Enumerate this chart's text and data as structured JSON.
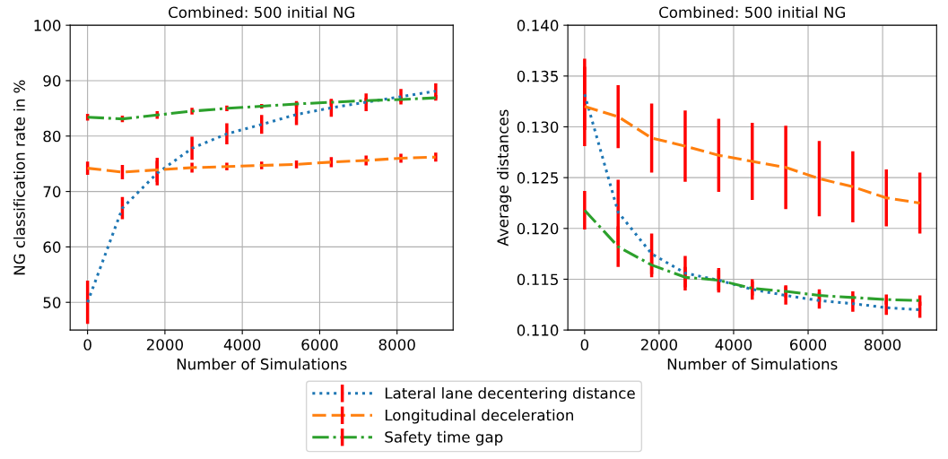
{
  "chart_data": [
    {
      "type": "line",
      "title": "Combined: 500 initial NG",
      "xlabel": "Number of Simulations",
      "ylabel": "NG classification rate in %",
      "x": [
        0,
        900,
        1800,
        2700,
        3600,
        4500,
        5400,
        6300,
        7200,
        8100,
        9000
      ],
      "xlim": [
        -450,
        9450
      ],
      "xticks": [
        0,
        2000,
        4000,
        6000,
        8000
      ],
      "ylim": [
        45,
        100
      ],
      "yticks": [
        50,
        60,
        70,
        80,
        90,
        100
      ],
      "grid": true,
      "legend": "bottom",
      "marker": "none",
      "series": [
        {
          "name": "Lateral lane decentering distance",
          "color": "#1f77b4",
          "line_style": "dotted",
          "values": [
            50.0,
            67.0,
            73.3,
            77.8,
            80.4,
            82.1,
            83.9,
            85.1,
            86.1,
            87.1,
            88.1
          ],
          "errors": [
            3.9,
            2.0,
            2.2,
            2.1,
            1.9,
            1.7,
            1.9,
            1.6,
            1.6,
            1.4,
            1.4
          ]
        },
        {
          "name": "Longitudinal deceleration",
          "color": "#ff7f0e",
          "line_style": "dashed",
          "values": [
            74.2,
            73.5,
            73.9,
            74.3,
            74.5,
            74.7,
            74.9,
            75.3,
            75.6,
            76.0,
            76.2
          ],
          "errors": [
            1.2,
            1.3,
            2.2,
            0.9,
            0.7,
            0.7,
            0.7,
            0.9,
            0.9,
            0.8,
            0.8
          ]
        },
        {
          "name": "Safety time gap",
          "color": "#2ca02c",
          "line_style": "dashdot",
          "values": [
            83.4,
            83.1,
            83.8,
            84.5,
            85.0,
            85.4,
            85.8,
            86.1,
            86.4,
            86.6,
            86.9
          ],
          "errors": [
            0.6,
            0.6,
            0.7,
            0.6,
            0.5,
            0.4,
            0.5,
            0.5,
            0.5,
            0.5,
            0.5
          ]
        }
      ]
    },
    {
      "type": "line",
      "title": "Combined: 500 initial NG",
      "xlabel": "Number of Simulations",
      "ylabel": "Average distances",
      "x": [
        0,
        900,
        1800,
        2700,
        3600,
        4500,
        5400,
        6300,
        7200,
        8100,
        9000
      ],
      "xlim": [
        -450,
        9450
      ],
      "xticks": [
        0,
        2000,
        4000,
        6000,
        8000
      ],
      "ylim": [
        0.11,
        0.14
      ],
      "yticks": [
        {
          "value": 0.11,
          "label": "0.110"
        },
        {
          "value": 0.115,
          "label": "0.115"
        },
        {
          "value": 0.12,
          "label": "0.120"
        },
        {
          "value": 0.125,
          "label": "0.125"
        },
        {
          "value": 0.13,
          "label": "0.130"
        },
        {
          "value": 0.135,
          "label": "0.135"
        },
        {
          "value": 0.14,
          "label": "0.140"
        }
      ],
      "grid": true,
      "legend": "bottom",
      "marker": "none",
      "series": [
        {
          "name": "Lateral lane decentering distance",
          "color": "#1f77b4",
          "line_style": "dotted",
          "values": [
            0.1332,
            0.1216,
            0.1175,
            0.1156,
            0.1149,
            0.114,
            0.1134,
            0.1129,
            0.1126,
            0.1122,
            0.112
          ],
          "errors": [
            0.0035,
            0.0032,
            0.002,
            0.0017,
            0.0012,
            0.001,
            0.0009,
            0.0008,
            0.0008,
            0.0007,
            0.0008
          ]
        },
        {
          "name": "Longitudinal deceleration",
          "color": "#ff7f0e",
          "line_style": "dashed",
          "values": [
            0.132,
            0.131,
            0.1289,
            0.1281,
            0.1272,
            0.1266,
            0.126,
            0.1249,
            0.1241,
            0.123,
            0.1225
          ],
          "errors": [
            0.0039,
            0.0031,
            0.0034,
            0.0035,
            0.0036,
            0.0038,
            0.0041,
            0.0037,
            0.0035,
            0.0028,
            0.003
          ]
        },
        {
          "name": "Safety time gap",
          "color": "#2ca02c",
          "line_style": "dashdot",
          "values": [
            0.1218,
            0.1182,
            0.1164,
            0.1152,
            0.1149,
            0.1141,
            0.1138,
            0.1134,
            0.1132,
            0.113,
            0.1129
          ],
          "errors": [
            0.0019,
            0.002,
            0.0012,
            0.001,
            0.001,
            0.0007,
            0.0006,
            0.0006,
            0.0006,
            0.0005,
            0.0005
          ]
        }
      ]
    }
  ]
}
